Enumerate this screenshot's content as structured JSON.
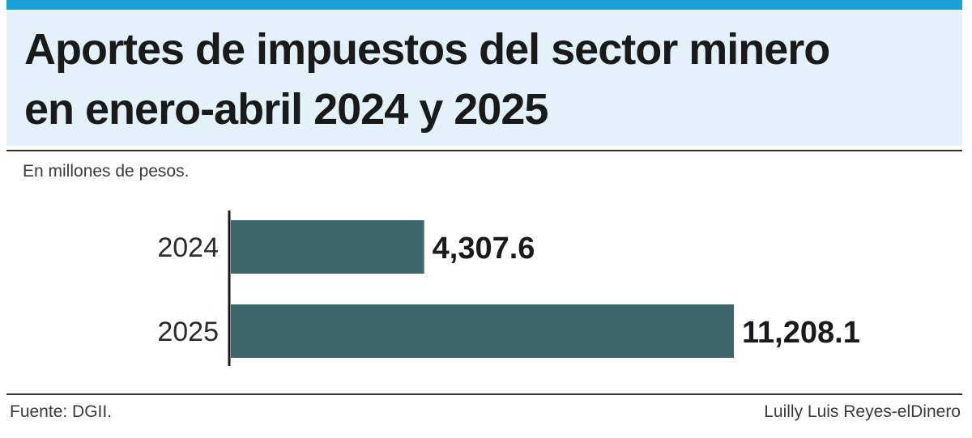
{
  "colors": {
    "accent": "#1ca0d8",
    "title_background": "#e3f1fa",
    "bar": "#3e666d"
  },
  "header": {
    "title_line1": "Aportes de impuestos del sector minero",
    "title_line2": "en enero-abril 2024 y 2025",
    "subtitle": "En millones de pesos."
  },
  "footer": {
    "source": "Fuente: DGII.",
    "credit": "Luilly Luis Reyes-elDinero"
  },
  "chart_data": {
    "type": "bar",
    "orientation": "horizontal",
    "title": "Aportes de impuestos del sector minero en enero-abril 2024 y 2025",
    "subtitle": "En millones de pesos.",
    "xlabel": "",
    "ylabel": "",
    "categories": [
      "2024",
      "2025"
    ],
    "values": [
      4307.6,
      11208.1
    ],
    "value_labels": [
      "4,307.6",
      "11,208.1"
    ],
    "xlim": [
      0,
      11208.1
    ],
    "grid": false,
    "legend": "none"
  }
}
